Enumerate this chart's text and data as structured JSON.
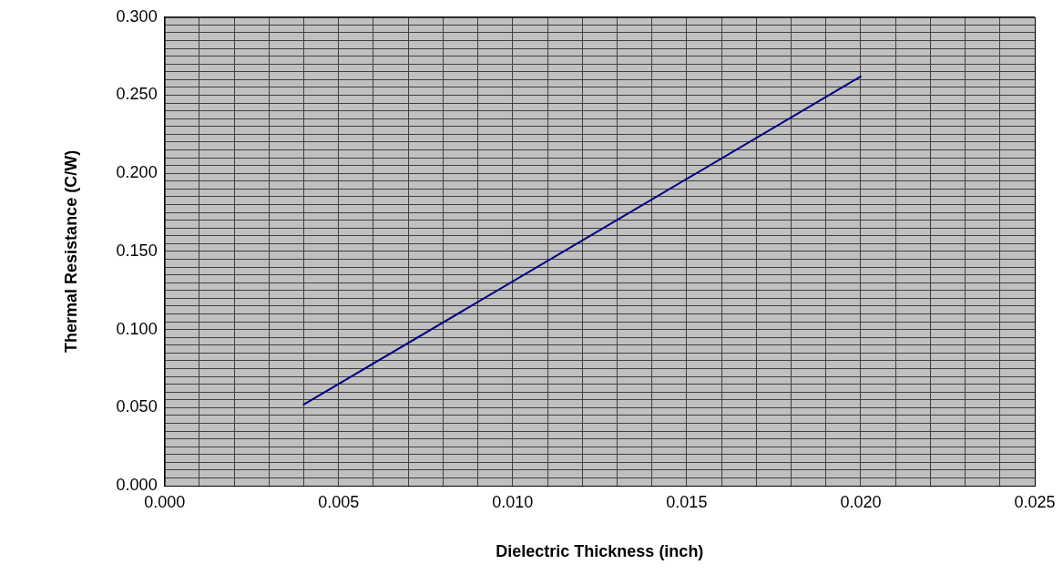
{
  "chart_data": {
    "type": "line",
    "xlabel": "Dielectric Thickness (inch)",
    "ylabel": "Thermal Resistance (C/W)",
    "x": [
      0.004,
      0.02
    ],
    "series": [
      {
        "color": "#000080",
        "values": [
          0.052,
          0.262
        ]
      }
    ],
    "xlim": [
      0,
      0.025
    ],
    "xticks": [
      {
        "value": 0,
        "label": "0.000"
      },
      {
        "value": 0.001,
        "label": null
      },
      {
        "value": 0.002,
        "label": null
      },
      {
        "value": 0.003,
        "label": null
      },
      {
        "value": 0.004,
        "label": null
      },
      {
        "value": 0.005,
        "label": "0.005"
      },
      {
        "value": 0.006,
        "label": null
      },
      {
        "value": 0.007,
        "label": null
      },
      {
        "value": 0.008,
        "label": null
      },
      {
        "value": 0.009,
        "label": null
      },
      {
        "value": 0.01,
        "label": "0.010"
      },
      {
        "value": 0.011,
        "label": null
      },
      {
        "value": 0.012,
        "label": null
      },
      {
        "value": 0.013,
        "label": null
      },
      {
        "value": 0.014,
        "label": null
      },
      {
        "value": 0.015,
        "label": "0.015"
      },
      {
        "value": 0.016,
        "label": null
      },
      {
        "value": 0.017,
        "label": null
      },
      {
        "value": 0.018,
        "label": null
      },
      {
        "value": 0.019,
        "label": null
      },
      {
        "value": 0.02,
        "label": "0.020"
      },
      {
        "value": 0.021,
        "label": null
      },
      {
        "value": 0.022,
        "label": null
      },
      {
        "value": 0.023,
        "label": null
      },
      {
        "value": 0.024,
        "label": null
      },
      {
        "value": 0.025,
        "label": "0.025"
      }
    ],
    "ylim": [
      0,
      0.3
    ],
    "yticks": [
      {
        "value": 0,
        "label": "0.000"
      },
      {
        "value": 0.005,
        "label": null
      },
      {
        "value": 0.01,
        "label": null
      },
      {
        "value": 0.015,
        "label": null
      },
      {
        "value": 0.02,
        "label": null
      },
      {
        "value": 0.025,
        "label": null
      },
      {
        "value": 0.03,
        "label": null
      },
      {
        "value": 0.035,
        "label": null
      },
      {
        "value": 0.04,
        "label": null
      },
      {
        "value": 0.045,
        "label": null
      },
      {
        "value": 0.05,
        "label": "0.050"
      },
      {
        "value": 0.055,
        "label": null
      },
      {
        "value": 0.06,
        "label": null
      },
      {
        "value": 0.065,
        "label": null
      },
      {
        "value": 0.07,
        "label": null
      },
      {
        "value": 0.075,
        "label": null
      },
      {
        "value": 0.08,
        "label": null
      },
      {
        "value": 0.085,
        "label": null
      },
      {
        "value": 0.09,
        "label": null
      },
      {
        "value": 0.095,
        "label": null
      },
      {
        "value": 0.1,
        "label": "0.100"
      },
      {
        "value": 0.105,
        "label": null
      },
      {
        "value": 0.11,
        "label": null
      },
      {
        "value": 0.115,
        "label": null
      },
      {
        "value": 0.12,
        "label": null
      },
      {
        "value": 0.125,
        "label": null
      },
      {
        "value": 0.13,
        "label": null
      },
      {
        "value": 0.135,
        "label": null
      },
      {
        "value": 0.14,
        "label": null
      },
      {
        "value": 0.145,
        "label": null
      },
      {
        "value": 0.15,
        "label": "0.150"
      },
      {
        "value": 0.155,
        "label": null
      },
      {
        "value": 0.16,
        "label": null
      },
      {
        "value": 0.165,
        "label": null
      },
      {
        "value": 0.17,
        "label": null
      },
      {
        "value": 0.175,
        "label": null
      },
      {
        "value": 0.18,
        "label": null
      },
      {
        "value": 0.185,
        "label": null
      },
      {
        "value": 0.19,
        "label": null
      },
      {
        "value": 0.195,
        "label": null
      },
      {
        "value": 0.2,
        "label": "0.200"
      },
      {
        "value": 0.205,
        "label": null
      },
      {
        "value": 0.21,
        "label": null
      },
      {
        "value": 0.215,
        "label": null
      },
      {
        "value": 0.22,
        "label": null
      },
      {
        "value": 0.225,
        "label": null
      },
      {
        "value": 0.23,
        "label": null
      },
      {
        "value": 0.235,
        "label": null
      },
      {
        "value": 0.24,
        "label": null
      },
      {
        "value": 0.245,
        "label": null
      },
      {
        "value": 0.25,
        "label": "0.250"
      },
      {
        "value": 0.255,
        "label": null
      },
      {
        "value": 0.26,
        "label": null
      },
      {
        "value": 0.265,
        "label": null
      },
      {
        "value": 0.27,
        "label": null
      },
      {
        "value": 0.275,
        "label": null
      },
      {
        "value": 0.28,
        "label": null
      },
      {
        "value": 0.285,
        "label": null
      },
      {
        "value": 0.29,
        "label": null
      },
      {
        "value": 0.295,
        "label": null
      },
      {
        "value": 0.3,
        "label": "0.300"
      }
    ],
    "grid": true,
    "line_style": "solid"
  }
}
